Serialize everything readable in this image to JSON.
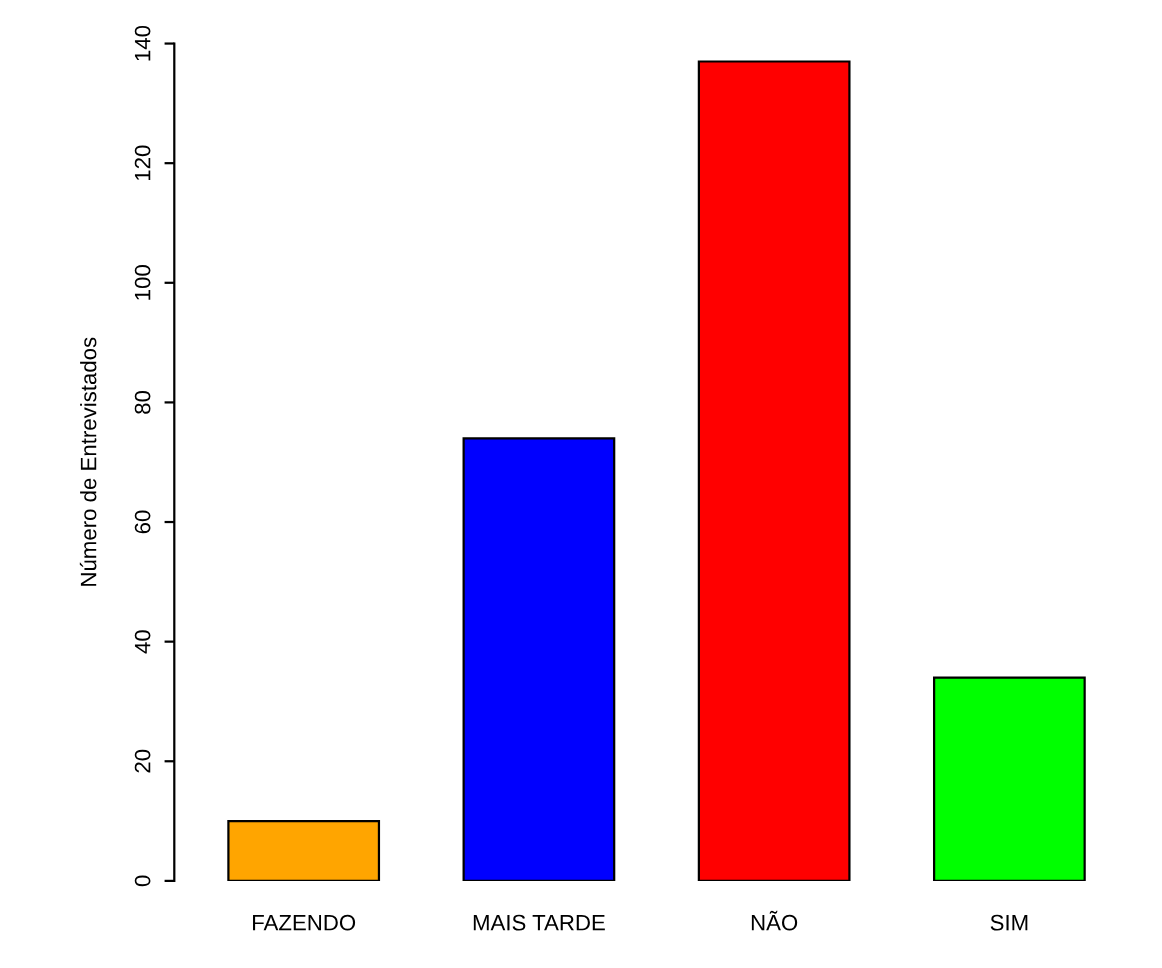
{
  "chart_data": {
    "type": "bar",
    "ylabel": "Número de Entrevistados",
    "categories": [
      "FAZENDO",
      "MAIS TARDE",
      "NÃO",
      "SIM"
    ],
    "values": [
      10,
      74,
      137,
      34
    ],
    "colors": [
      "#ffa500",
      "#0000ff",
      "#ff0000",
      "#00ff00"
    ],
    "ylim": [
      0,
      140
    ],
    "yticks": [
      0,
      20,
      40,
      60,
      80,
      100,
      120,
      140
    ],
    "grid": false,
    "legend": false
  }
}
